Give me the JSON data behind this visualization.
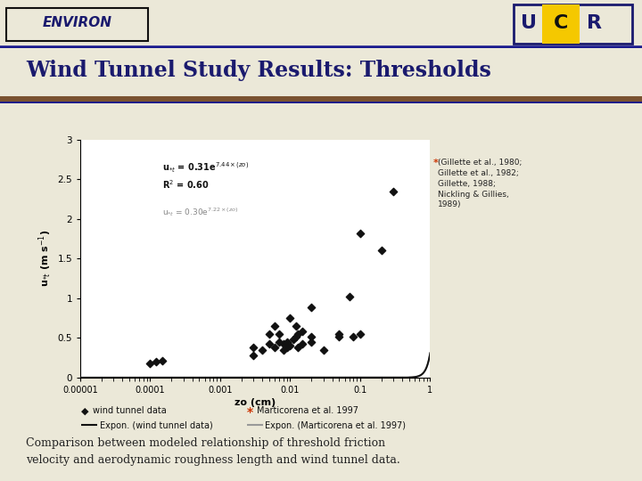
{
  "title": "Wind Tunnel Study Results: Thresholds",
  "bg_color": "#ebe8d8",
  "header_bg": "#ffffff",
  "plot_bg": "#ffffff",
  "title_color": "#1a1a6e",
  "top_bar_color": "#1a1a8e",
  "bottom_bar_color": "#7a5230",
  "xlabel": "zo (cm)",
  "ylabel": "u*t  (m s-1)",
  "wind_tunnel_data_x": [
    0.0001,
    0.00012,
    0.00015,
    0.003,
    0.003,
    0.004,
    0.005,
    0.005,
    0.006,
    0.006,
    0.007,
    0.007,
    0.008,
    0.008,
    0.009,
    0.009,
    0.01,
    0.01,
    0.011,
    0.012,
    0.012,
    0.013,
    0.013,
    0.015,
    0.015,
    0.02,
    0.02,
    0.02,
    0.03,
    0.05,
    0.05,
    0.07,
    0.08,
    0.1,
    0.1,
    0.2,
    0.3
  ],
  "wind_tunnel_data_y": [
    0.18,
    0.2,
    0.21,
    0.28,
    0.38,
    0.35,
    0.42,
    0.55,
    0.38,
    0.65,
    0.45,
    0.55,
    0.35,
    0.42,
    0.45,
    0.38,
    0.4,
    0.75,
    0.48,
    0.52,
    0.65,
    0.38,
    0.55,
    0.58,
    0.42,
    0.52,
    0.45,
    0.88,
    0.35,
    0.55,
    0.52,
    1.02,
    0.52,
    0.55,
    1.82,
    1.6,
    2.35
  ],
  "ref_text": "(Gillette et al., 1980;\nGillette et al., 1982;\nGillette, 1988;\nNickling & Gillies,\n1989)",
  "footnote_line1": "Comparison between modeled relationship of threshold friction",
  "footnote_line2": "velocity and aerodynamic roughness length and wind tunnel data.",
  "legend_wind_label": "wind tunnel data",
  "legend_expon_wind_label": "Expon. (wind tunnel data)",
  "legend_marti_label": "Marticorena et al. 1997",
  "legend_expon_marti_label": "Expon. (Marticorena et al. 1997)",
  "star_color": "#cc3300",
  "line1_color": "#111111",
  "line2_color": "#999999",
  "marker_color": "#111111",
  "environ_text": "ENVIRON",
  "ucr_letters": [
    "U",
    "C",
    "R"
  ],
  "ucr_colors": [
    "#1a1a6e",
    "#111111",
    "#1a1a6e"
  ],
  "ucr_c_bg": "#f5c800"
}
